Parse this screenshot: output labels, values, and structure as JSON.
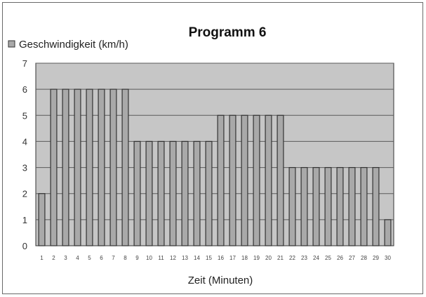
{
  "chart_data": {
    "type": "bar",
    "title": "Programm 6",
    "xlabel": "Zeit (Minuten)",
    "ylabel": "",
    "ylim": [
      0,
      7
    ],
    "yticks": [
      0,
      1,
      2,
      3,
      4,
      5,
      6,
      7
    ],
    "grid": true,
    "legend_position": "top-left",
    "categories": [
      "1",
      "2",
      "3",
      "4",
      "5",
      "6",
      "7",
      "8",
      "9",
      "10",
      "11",
      "12",
      "13",
      "14",
      "15",
      "16",
      "17",
      "18",
      "19",
      "20",
      "21",
      "22",
      "23",
      "24",
      "25",
      "26",
      "27",
      "28",
      "29",
      "30"
    ],
    "series": [
      {
        "name": "Geschwindigkeit (km/h)",
        "values": [
          2,
          6,
          6,
          6,
          6,
          6,
          6,
          6,
          4,
          4,
          4,
          4,
          4,
          4,
          4,
          5,
          5,
          5,
          5,
          5,
          5,
          3,
          3,
          3,
          3,
          3,
          3,
          3,
          3,
          1
        ]
      }
    ],
    "colors": {
      "plot_background": "#c6c6c6",
      "bar_fill": "#a9a9a9",
      "bar_stroke": "#333333",
      "grid": "#5a5a5a"
    }
  }
}
